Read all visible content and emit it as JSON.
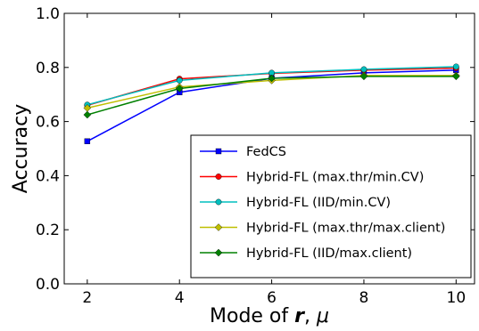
{
  "chart_data": {
    "type": "line",
    "xlabel": "Mode of r, μ",
    "xlabel_parts": {
      "text": "Mode of ",
      "var1": "r",
      "sep": ", ",
      "var2": "μ"
    },
    "ylabel": "Accuracy",
    "x": [
      2,
      4,
      6,
      8,
      10
    ],
    "xlim": [
      1.5,
      10.4
    ],
    "ylim": [
      0.0,
      1.0
    ],
    "xticks": [
      "2",
      "4",
      "6",
      "8",
      "10"
    ],
    "yticks": [
      "0.0",
      "0.2",
      "0.4",
      "0.6",
      "0.8",
      "1.0"
    ],
    "grid": false,
    "legend_position": "lower-right",
    "series": [
      {
        "name": "FedCS",
        "color": "#0000ff",
        "marker": "square",
        "values": [
          0.527,
          0.708,
          0.76,
          0.78,
          0.79
        ]
      },
      {
        "name": "Hybrid-FL (max.thr/min.CV)",
        "color": "#ff0000",
        "marker": "circle",
        "values": [
          0.66,
          0.758,
          0.778,
          0.79,
          0.798
        ]
      },
      {
        "name": "Hybrid-FL (IID/min.CV)",
        "color": "#00bfbf",
        "marker": "circle",
        "values": [
          0.662,
          0.752,
          0.78,
          0.793,
          0.803
        ]
      },
      {
        "name": "Hybrid-FL (max.thr/max.client)",
        "color": "#bfbf00",
        "marker": "diamond",
        "values": [
          0.65,
          0.728,
          0.752,
          0.77,
          0.77
        ]
      },
      {
        "name": "Hybrid-FL (IID/max.client)",
        "color": "#008000",
        "marker": "diamond",
        "values": [
          0.625,
          0.722,
          0.76,
          0.767,
          0.767
        ]
      }
    ]
  }
}
